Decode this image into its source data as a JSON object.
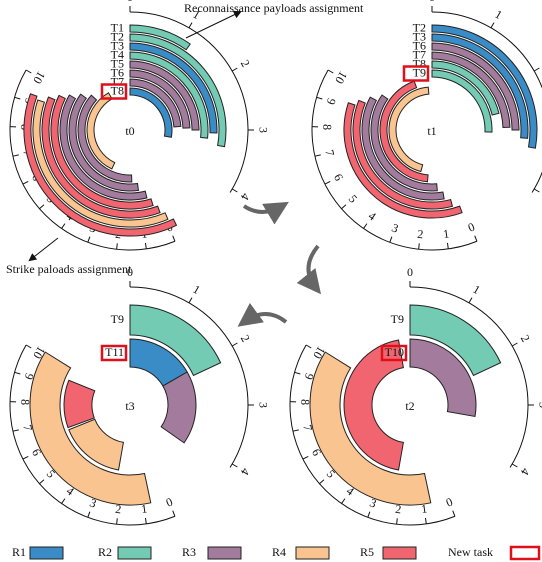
{
  "annotations": {
    "recon": "Reconnaissance payloads assignment",
    "strike": "Strike paloads assignment"
  },
  "scales": {
    "outer": [
      "0",
      "1",
      "2",
      "3",
      "4"
    ],
    "inner": [
      "0",
      "1",
      "2",
      "3",
      "4",
      "5",
      "6",
      "7",
      "8",
      "9",
      "10"
    ]
  },
  "panels": [
    {
      "label": "t0",
      "tasks": [
        "T1",
        "T2",
        "T3",
        "T4",
        "T5",
        "T6",
        "T7",
        "T8"
      ]
    },
    {
      "label": "t1",
      "tasks": [
        "T2",
        "T3",
        "T6",
        "T7",
        "T8",
        "T9"
      ]
    },
    {
      "label": "t2",
      "tasks": [
        "T9",
        "T10"
      ]
    },
    {
      "label": "t3",
      "tasks": [
        "T9",
        "T11"
      ]
    }
  ],
  "legend": {
    "items": [
      "R1",
      "R2",
      "R3",
      "R4",
      "R5"
    ],
    "colors": [
      "#3a8cc6",
      "#72cbb2",
      "#a27b9d",
      "#f9c48f",
      "#f0656f"
    ],
    "new_task": "New task"
  }
}
